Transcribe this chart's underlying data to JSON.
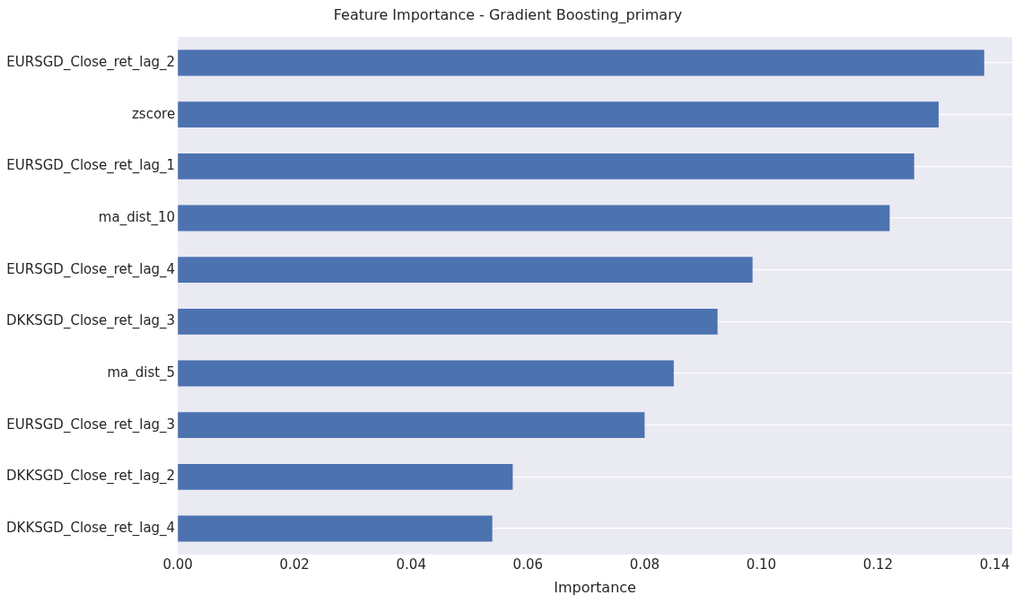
{
  "chart_data": {
    "type": "bar",
    "orientation": "horizontal",
    "title": "Feature Importance - Gradient Boosting_primary",
    "xlabel": "Importance",
    "categories": [
      "EURSGD_Close_ret_lag_2",
      "zscore",
      "EURSGD_Close_ret_lag_1",
      "ma_dist_10",
      "EURSGD_Close_ret_lag_4",
      "DKKSGD_Close_ret_lag_3",
      "ma_dist_5",
      "EURSGD_Close_ret_lag_3",
      "DKKSGD_Close_ret_lag_2",
      "DKKSGD_Close_ret_lag_4"
    ],
    "values": [
      0.1382,
      0.1304,
      0.1262,
      0.122,
      0.0985,
      0.0925,
      0.085,
      0.08,
      0.0574,
      0.0539
    ],
    "color": "#4c72b0",
    "xlim": [
      0,
      0.143
    ],
    "xticks": [
      {
        "value": 0,
        "label": "0.00"
      },
      {
        "value": 0.02,
        "label": "0.02"
      },
      {
        "value": 0.04,
        "label": "0.04"
      },
      {
        "value": 0.06,
        "label": "0.06"
      },
      {
        "value": 0.08,
        "label": "0.08"
      },
      {
        "value": 0.1,
        "label": "0.10"
      },
      {
        "value": 0.12,
        "label": "0.12"
      },
      {
        "value": 0.14,
        "label": "0.14"
      }
    ],
    "grid": "y",
    "legend": false
  }
}
